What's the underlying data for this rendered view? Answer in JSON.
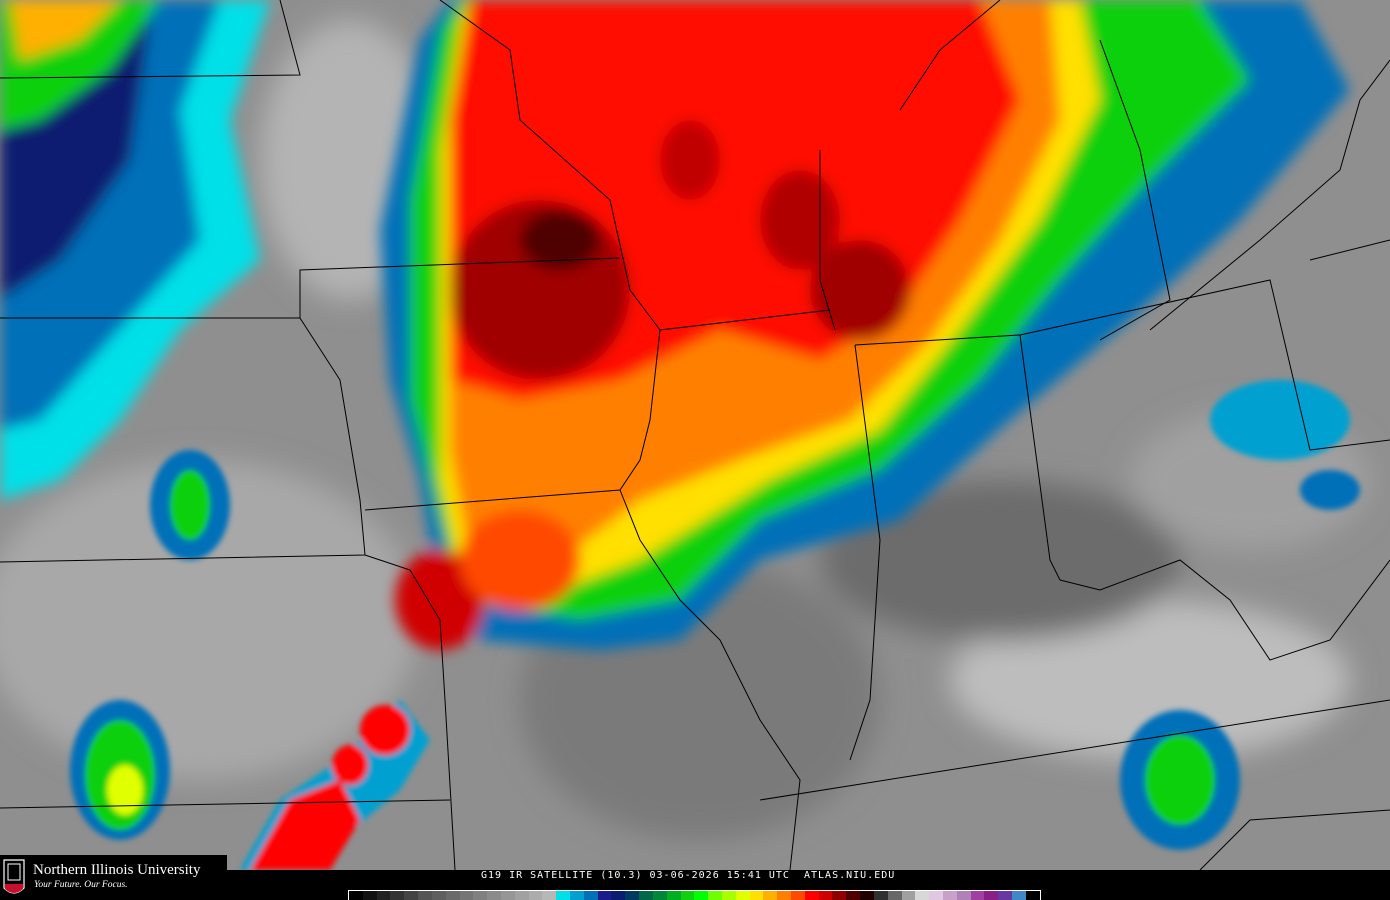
{
  "logo": {
    "name": "Northern Illinois University",
    "tagline": "Your Future. Our Focus.",
    "badge": "NIU"
  },
  "caption": {
    "product": "G19 IR SATELLITE (10.3)",
    "date": "03-06-2026",
    "time": "15:41 UTC",
    "source": "ATLAS.NIU.EDU"
  },
  "colorbar": {
    "colors": [
      "#000000",
      "#111111",
      "#222222",
      "#333333",
      "#444444",
      "#555555",
      "#5f5f5f",
      "#6a6a6a",
      "#757575",
      "#808080",
      "#8b8b8b",
      "#969696",
      "#a1a1a1",
      "#acacac",
      "#b7b7b7",
      "#00e0e8",
      "#00a0d0",
      "#0070b8",
      "#1c1c8c",
      "#0c1c70",
      "#003a60",
      "#006848",
      "#008838",
      "#00b020",
      "#10d010",
      "#00ff00",
      "#70ff00",
      "#a8ff00",
      "#e0ff00",
      "#ffe000",
      "#ffb000",
      "#ff8000",
      "#ff4800",
      "#ff0000",
      "#d00000",
      "#900000",
      "#500000",
      "#200000",
      "#303030",
      "#686868",
      "#a0a0a0",
      "#d8d8d8",
      "#e0c8e0",
      "#c8a0c8",
      "#b080b8",
      "#a040a0",
      "#882088",
      "#6838a0",
      "#4088c8",
      "#000000"
    ]
  },
  "colors": {
    "background_gray": "#8c8c8c",
    "boundary": "#000000"
  }
}
